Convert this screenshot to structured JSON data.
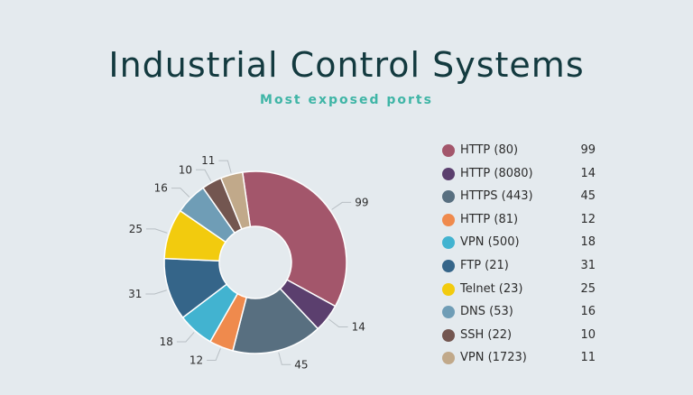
{
  "title": "Industrial Control Systems",
  "subtitle": "Most exposed ports",
  "chart_data": {
    "type": "pie",
    "donut": true,
    "title": "Industrial Control Systems",
    "subtitle": "Most exposed ports",
    "legend_position": "right",
    "slices": [
      {
        "label": "HTTP (80)",
        "value": 99,
        "color": "#a3566b"
      },
      {
        "label": "HTTP (8080)",
        "value": 14,
        "color": "#5b3f6e"
      },
      {
        "label": "HTTPS (443)",
        "value": 45,
        "color": "#586f80"
      },
      {
        "label": "HTTP (81)",
        "value": 12,
        "color": "#ef8a4d"
      },
      {
        "label": "VPN (500)",
        "value": 18,
        "color": "#42b3d0"
      },
      {
        "label": "FTP (21)",
        "value": 31,
        "color": "#356589"
      },
      {
        "label": "Telnet (23)",
        "value": 25,
        "color": "#f2cb0e"
      },
      {
        "label": "DNS (53)",
        "value": 16,
        "color": "#6f9db6"
      },
      {
        "label": "SSH (22)",
        "value": 10,
        "color": "#735650"
      },
      {
        "label": "VPN (1723)",
        "value": 11,
        "color": "#c1a98a"
      }
    ]
  }
}
